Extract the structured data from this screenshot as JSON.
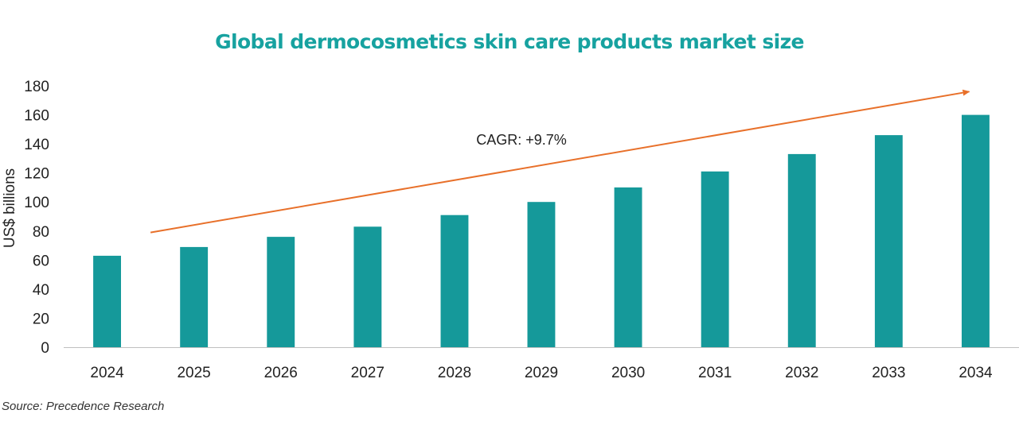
{
  "chart_data": {
    "type": "bar",
    "title": "Global dermocosmetics skin care products market size",
    "ylabel": "US$ billions",
    "xlabel": "",
    "categories": [
      "2024",
      "2025",
      "2026",
      "2027",
      "2028",
      "2029",
      "2030",
      "2031",
      "2032",
      "2033",
      "2034"
    ],
    "values": [
      63,
      69,
      76,
      83,
      91,
      100,
      110,
      121,
      133,
      146,
      160
    ],
    "ylim": [
      0,
      180
    ],
    "yticks": [
      0,
      20,
      40,
      60,
      80,
      100,
      120,
      140,
      160,
      180
    ],
    "grid": false,
    "legend": "none",
    "bar_color": "#15999a",
    "trend_arrow": {
      "color": "#e8702a",
      "from": [
        "2024.5",
        79
      ],
      "to": [
        "2034",
        176
      ]
    },
    "annotation": "CAGR: +9.7%"
  },
  "source": "Source: Precedence Research"
}
